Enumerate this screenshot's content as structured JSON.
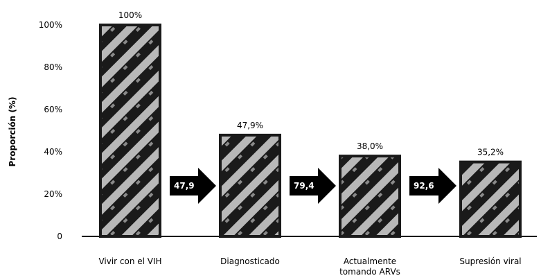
{
  "chart_data": {
    "type": "bar",
    "categories": [
      "Vivir con el VIH",
      "Diagnosticado",
      "Actualmente\ntomando ARVs",
      "Supresión viral"
    ],
    "values": [
      100,
      47.9,
      38.0,
      35.2
    ],
    "value_labels": [
      "100%",
      "47,9%",
      "38,0%",
      "35,2%"
    ],
    "ylabel": "Proporción (%)",
    "ylim": [
      0,
      100
    ],
    "y_ticks": [
      0,
      20,
      40,
      60,
      80,
      100
    ],
    "y_tick_labels": [
      "0",
      "20%",
      "40%",
      "60%",
      "80%",
      "100%"
    ],
    "grid": false,
    "transitions": [
      "47,9",
      "79,4",
      "92,6"
    ],
    "colors": {
      "bar": "#1a1a1a",
      "pattern": "#b8b8b8",
      "arrow": "#000000",
      "axis": "#000000"
    }
  }
}
